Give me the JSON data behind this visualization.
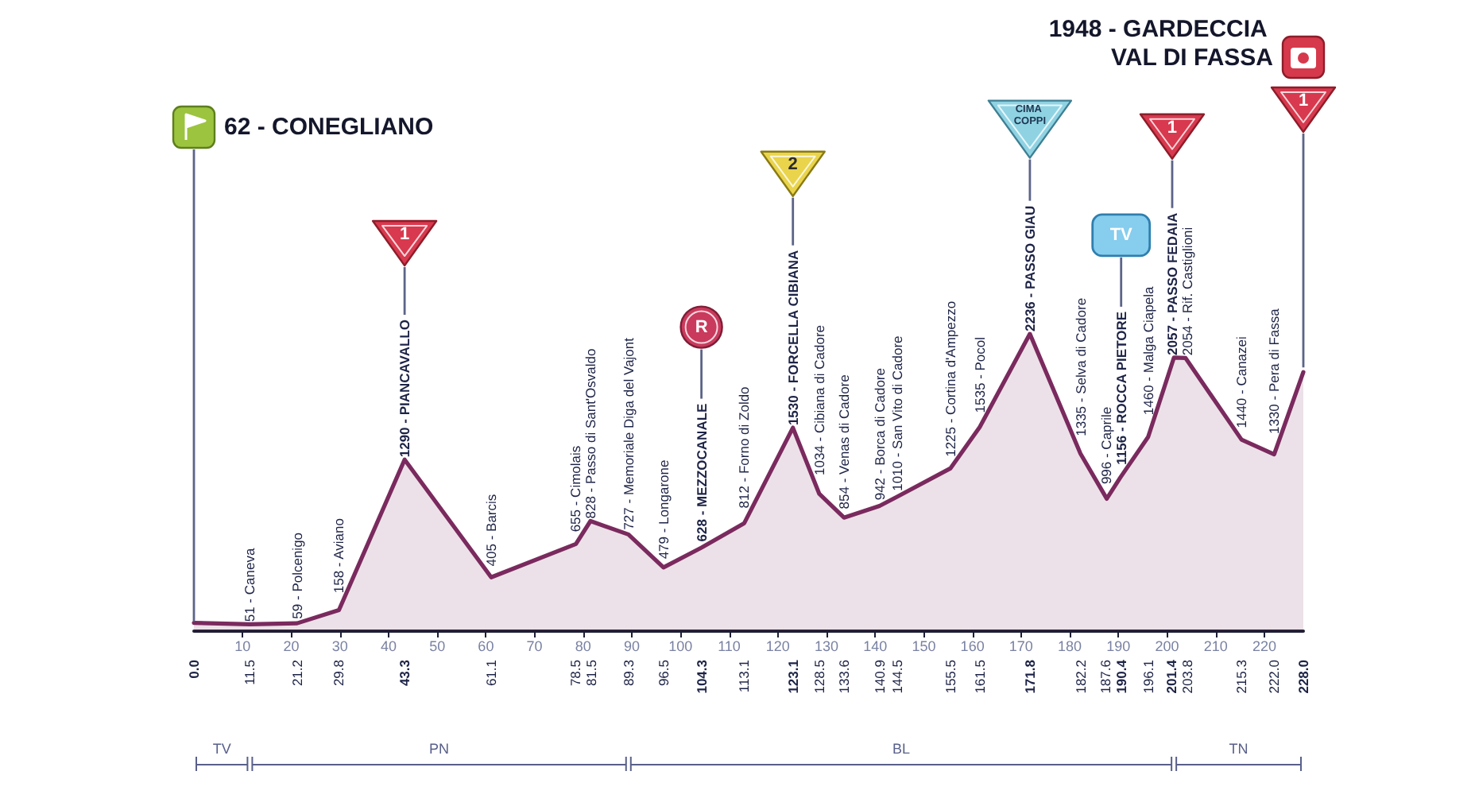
{
  "chart_data": {
    "type": "area",
    "marker": "none",
    "grid": false,
    "color": "#7a2a5e",
    "x": [
      0,
      11.5,
      21.2,
      29.8,
      43.3,
      61.1,
      78.5,
      81.5,
      89.3,
      96.5,
      104.3,
      113.1,
      123.1,
      128.5,
      133.6,
      140.9,
      144.5,
      155.5,
      161.5,
      171.8,
      182.2,
      187.6,
      190.4,
      196.1,
      201.4,
      203.8,
      215.3,
      222,
      228
    ],
    "values": [
      62,
      51,
      59,
      158,
      1290,
      405,
      655,
      828,
      727,
      479,
      628,
      812,
      1530,
      1034,
      854,
      942,
      1010,
      1225,
      1535,
      2236,
      1335,
      996,
      1156,
      1460,
      2057,
      2054,
      1440,
      1330,
      1948
    ],
    "value_labels": [
      null,
      "51 - Caneva",
      "59 - Polcenigo",
      "158 - Aviano",
      "1290 - PIANCAVALLO",
      "405 - Barcis",
      "655 - Cimolais",
      "828 - Passo di Sant'Osvaldo",
      "727 - Memoriale Diga del Vajont",
      "479 - Longarone",
      "628 - MEZZOCANALE",
      "812 - Forno di Zoldo",
      "1530 - FORCELLA CIBIANA",
      "1034 - Cibiana di Cadore",
      "854 - Venas di Cadore",
      "942 - Borca di Cadore",
      "1010 - San Vito di Cadore",
      "1225 - Cortina d'Ampezzo",
      "1535 - Pocol",
      "2236 - PASSO GIAU",
      "1335 - Selva di Cadore",
      "996 - Caprile",
      "1156 - ROCCA PIETORE",
      "1460 - Malga Ciapela",
      "2057 - PASSO FEDAIA",
      "2054 - Rif. Castiglioni",
      "1440 - Canazei",
      "1330 - Pera di Fassa",
      null
    ],
    "xlim": [
      0,
      228
    ],
    "xticks": [
      10,
      20,
      30,
      40,
      50,
      60,
      70,
      80,
      90,
      100,
      110,
      120,
      130,
      140,
      150,
      160,
      170,
      180,
      190,
      200,
      210,
      220
    ],
    "x2lim": [
      0,
      228
    ],
    "x2ticks": [
      {
        "value": 0,
        "label": "0.0"
      },
      11.5,
      21.2,
      29.8,
      43.3,
      61.1,
      78.5,
      81.5,
      89.3,
      96.5,
      104.3,
      113.1,
      123.1,
      128.5,
      133.6,
      140.9,
      144.5,
      155.5,
      161.5,
      171.8,
      182.2,
      187.6,
      190.4,
      196.1,
      201.4,
      203.8,
      215.3,
      {
        "value": 222,
        "label": "222.0"
      },
      {
        "value": 228,
        "label": "228.0"
      }
    ],
    "annotations": [
      "62 - CONEGLIANO",
      "1948 - GARDECCIA VAL DI FASSA",
      "1",
      "R",
      "2",
      "CIMA COPPI",
      "TV",
      "1",
      "1",
      "TV",
      "PN",
      "BL",
      "TN"
    ]
  }
}
